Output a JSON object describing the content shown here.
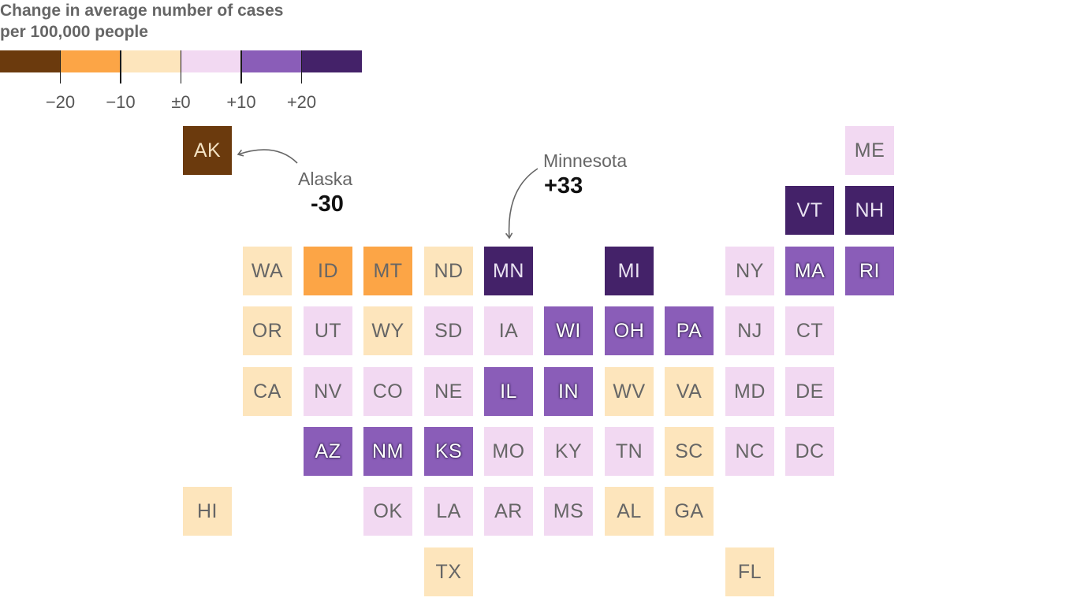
{
  "legend": {
    "title": "Change in average number of cases per 100,000 people",
    "colors": [
      "#6b3a0d",
      "#fca546",
      "#fde5bc",
      "#f2d9f2",
      "#8a5db8",
      "#442269"
    ],
    "tick_labels": [
      "−20",
      "−10",
      "±0",
      "+10",
      "+20"
    ],
    "tick_values": [
      -20,
      -10,
      0,
      10,
      20
    ]
  },
  "states": [
    {
      "abbr": "AK",
      "row": 0,
      "col": 0,
      "bin": 0
    },
    {
      "abbr": "ME",
      "row": 0,
      "col": 11,
      "bin": 3
    },
    {
      "abbr": "VT",
      "row": 1,
      "col": 10,
      "bin": 5
    },
    {
      "abbr": "NH",
      "row": 1,
      "col": 11,
      "bin": 5
    },
    {
      "abbr": "WA",
      "row": 2,
      "col": 1,
      "bin": 2
    },
    {
      "abbr": "ID",
      "row": 2,
      "col": 2,
      "bin": 1
    },
    {
      "abbr": "MT",
      "row": 2,
      "col": 3,
      "bin": 1
    },
    {
      "abbr": "ND",
      "row": 2,
      "col": 4,
      "bin": 2
    },
    {
      "abbr": "MN",
      "row": 2,
      "col": 5,
      "bin": 5
    },
    {
      "abbr": "MI",
      "row": 2,
      "col": 7,
      "bin": 5
    },
    {
      "abbr": "NY",
      "row": 2,
      "col": 9,
      "bin": 3
    },
    {
      "abbr": "MA",
      "row": 2,
      "col": 10,
      "bin": 4
    },
    {
      "abbr": "RI",
      "row": 2,
      "col": 11,
      "bin": 4
    },
    {
      "abbr": "OR",
      "row": 3,
      "col": 1,
      "bin": 2
    },
    {
      "abbr": "UT",
      "row": 3,
      "col": 2,
      "bin": 3
    },
    {
      "abbr": "WY",
      "row": 3,
      "col": 3,
      "bin": 2
    },
    {
      "abbr": "SD",
      "row": 3,
      "col": 4,
      "bin": 3
    },
    {
      "abbr": "IA",
      "row": 3,
      "col": 5,
      "bin": 3
    },
    {
      "abbr": "WI",
      "row": 3,
      "col": 6,
      "bin": 4
    },
    {
      "abbr": "OH",
      "row": 3,
      "col": 7,
      "bin": 4
    },
    {
      "abbr": "PA",
      "row": 3,
      "col": 8,
      "bin": 4
    },
    {
      "abbr": "NJ",
      "row": 3,
      "col": 9,
      "bin": 3
    },
    {
      "abbr": "CT",
      "row": 3,
      "col": 10,
      "bin": 3
    },
    {
      "abbr": "CA",
      "row": 4,
      "col": 1,
      "bin": 2
    },
    {
      "abbr": "NV",
      "row": 4,
      "col": 2,
      "bin": 3
    },
    {
      "abbr": "CO",
      "row": 4,
      "col": 3,
      "bin": 3
    },
    {
      "abbr": "NE",
      "row": 4,
      "col": 4,
      "bin": 3
    },
    {
      "abbr": "IL",
      "row": 4,
      "col": 5,
      "bin": 4
    },
    {
      "abbr": "IN",
      "row": 4,
      "col": 6,
      "bin": 4
    },
    {
      "abbr": "WV",
      "row": 4,
      "col": 7,
      "bin": 2
    },
    {
      "abbr": "VA",
      "row": 4,
      "col": 8,
      "bin": 2
    },
    {
      "abbr": "MD",
      "row": 4,
      "col": 9,
      "bin": 3
    },
    {
      "abbr": "DE",
      "row": 4,
      "col": 10,
      "bin": 3
    },
    {
      "abbr": "AZ",
      "row": 5,
      "col": 2,
      "bin": 4
    },
    {
      "abbr": "NM",
      "row": 5,
      "col": 3,
      "bin": 4
    },
    {
      "abbr": "KS",
      "row": 5,
      "col": 4,
      "bin": 4
    },
    {
      "abbr": "MO",
      "row": 5,
      "col": 5,
      "bin": 3
    },
    {
      "abbr": "KY",
      "row": 5,
      "col": 6,
      "bin": 3
    },
    {
      "abbr": "TN",
      "row": 5,
      "col": 7,
      "bin": 3
    },
    {
      "abbr": "SC",
      "row": 5,
      "col": 8,
      "bin": 2
    },
    {
      "abbr": "NC",
      "row": 5,
      "col": 9,
      "bin": 3
    },
    {
      "abbr": "DC",
      "row": 5,
      "col": 10,
      "bin": 3
    },
    {
      "abbr": "HI",
      "row": 6,
      "col": 0,
      "bin": 2
    },
    {
      "abbr": "OK",
      "row": 6,
      "col": 3,
      "bin": 3
    },
    {
      "abbr": "LA",
      "row": 6,
      "col": 4,
      "bin": 3
    },
    {
      "abbr": "AR",
      "row": 6,
      "col": 5,
      "bin": 3
    },
    {
      "abbr": "MS",
      "row": 6,
      "col": 6,
      "bin": 3
    },
    {
      "abbr": "AL",
      "row": 6,
      "col": 7,
      "bin": 2
    },
    {
      "abbr": "GA",
      "row": 6,
      "col": 8,
      "bin": 2
    },
    {
      "abbr": "TX",
      "row": 7,
      "col": 4,
      "bin": 2
    },
    {
      "abbr": "FL",
      "row": 7,
      "col": 9,
      "bin": 2
    }
  ],
  "callouts": {
    "alaska": {
      "name": "Alaska",
      "value": "-30"
    },
    "minnesota": {
      "name": "Minnesota",
      "value": "+33"
    }
  }
}
